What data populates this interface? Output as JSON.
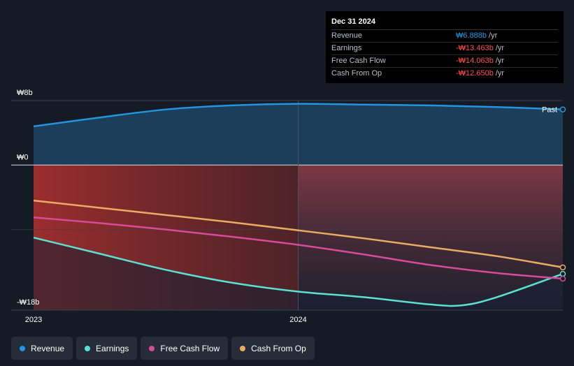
{
  "tooltip": {
    "date": "Dec 31 2024",
    "rows": [
      {
        "label": "Revenue",
        "value": "₩6.888b",
        "unit": "/yr"
      },
      {
        "label": "Earnings",
        "value": "-₩13.463b",
        "unit": "/yr"
      },
      {
        "label": "Free Cash Flow",
        "value": "-₩14.063b",
        "unit": "/yr"
      },
      {
        "label": "Cash From Op",
        "value": "-₩12.650b",
        "unit": "/yr"
      }
    ]
  },
  "legend": [
    {
      "label": "Revenue",
      "color": "#2394df"
    },
    {
      "label": "Earnings",
      "color": "#5ce0d2"
    },
    {
      "label": "Free Cash Flow",
      "color": "#d84b9b"
    },
    {
      "label": "Cash From Op",
      "color": "#e9ac63"
    }
  ],
  "chart_data": {
    "type": "line",
    "title": "",
    "xlabel": "",
    "ylabel": "",
    "y_tick_labels": [
      "₩8b",
      "₩0",
      "-₩18b"
    ],
    "y_ticks": [
      8,
      0,
      -18
    ],
    "x_tick_labels": [
      "2023",
      "2024"
    ],
    "x_ticks": [
      2023.0,
      2024.0
    ],
    "xlim": [
      2022.92,
      2025.0
    ],
    "ylim": [
      -18,
      8
    ],
    "past_label": "Past",
    "past_region_start": 2024.0,
    "series": [
      {
        "name": "Revenue",
        "color": "#2394df",
        "x": [
          2023.0,
          2023.25,
          2023.5,
          2023.75,
          2024.0,
          2024.25,
          2024.5,
          2024.75,
          2025.0
        ],
        "values": [
          4.8,
          5.9,
          6.9,
          7.4,
          7.6,
          7.5,
          7.4,
          7.2,
          6.9
        ]
      },
      {
        "name": "Earnings",
        "color": "#5ce0d2",
        "x": [
          2023.0,
          2023.25,
          2023.5,
          2023.75,
          2024.0,
          2024.25,
          2024.5,
          2024.62,
          2024.75,
          2025.0
        ],
        "values": [
          -9.0,
          -11.0,
          -13.0,
          -14.6,
          -15.7,
          -16.4,
          -17.3,
          -17.4,
          -16.4,
          -13.5
        ]
      },
      {
        "name": "Free Cash Flow",
        "color": "#d84b9b",
        "x": [
          2023.0,
          2023.25,
          2023.5,
          2023.75,
          2024.0,
          2024.25,
          2024.5,
          2024.75,
          2025.0
        ],
        "values": [
          -6.5,
          -7.2,
          -8.0,
          -8.9,
          -9.9,
          -11.1,
          -12.4,
          -13.4,
          -14.1
        ]
      },
      {
        "name": "Cash From Op",
        "color": "#e9ac63",
        "x": [
          2023.0,
          2023.25,
          2023.5,
          2023.75,
          2024.0,
          2024.25,
          2024.5,
          2024.75,
          2025.0
        ],
        "values": [
          -4.4,
          -5.3,
          -6.2,
          -7.1,
          -8.1,
          -9.1,
          -10.2,
          -11.3,
          -12.7
        ]
      }
    ]
  }
}
